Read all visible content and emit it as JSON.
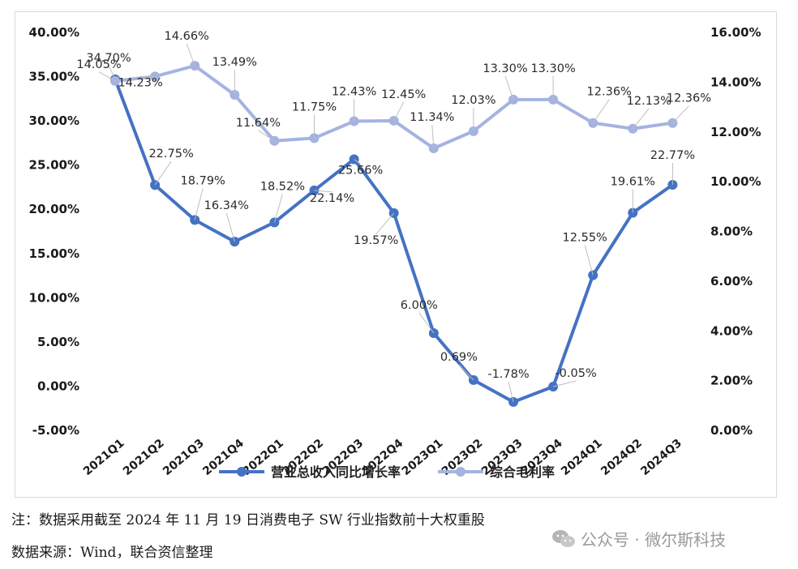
{
  "chart_data": {
    "type": "line",
    "categories": [
      "2021Q1",
      "2021Q2",
      "2021Q3",
      "2021Q4",
      "2022Q1",
      "2022Q2",
      "2022Q3",
      "2022Q4",
      "2023Q1",
      "2023Q2",
      "2023Q3",
      "2023Q4",
      "2024Q1",
      "2024Q2",
      "2024Q3"
    ],
    "series": [
      {
        "name": "营业总收入同比增长率",
        "axis": "left",
        "color": "#4472c4",
        "values": [
          34.7,
          22.75,
          18.79,
          16.34,
          18.52,
          22.14,
          25.66,
          19.57,
          6.0,
          0.69,
          -1.78,
          -0.05,
          12.55,
          19.61,
          22.77
        ],
        "labels": [
          "34.70%",
          "22.75%",
          "18.79%",
          "16.34%",
          "18.52%",
          "22.14%",
          "25.66%",
          "19.57%",
          "6.00%",
          "0.69%",
          "-1.78%",
          "-0.05%",
          "12.55%",
          "19.61%",
          "22.77%"
        ]
      },
      {
        "name": "综合毛利率",
        "axis": "right",
        "color": "#a4b3e0",
        "values": [
          14.05,
          14.23,
          14.66,
          13.49,
          11.64,
          11.75,
          12.43,
          12.45,
          11.34,
          12.03,
          13.3,
          13.3,
          12.36,
          12.13,
          12.36
        ],
        "labels": [
          "14.05%",
          "14.23%",
          "14.66%",
          "13.49%",
          "11.64%",
          "11.75%",
          "12.43%",
          "12.45%",
          "11.34%",
          "12.03%",
          "13.30%",
          "13.30%",
          "12.36%",
          "12.13%",
          "12.36%"
        ]
      }
    ],
    "y_left": {
      "range": [
        -5,
        40
      ],
      "ticks": [
        -5,
        0,
        5,
        10,
        15,
        20,
        25,
        30,
        35,
        40
      ],
      "tick_labels": [
        "-5.00%",
        "0.00%",
        "5.00%",
        "10.00%",
        "15.00%",
        "20.00%",
        "25.00%",
        "30.00%",
        "35.00%",
        "40.00%"
      ]
    },
    "y_right": {
      "range": [
        0,
        16
      ],
      "ticks": [
        0,
        2,
        4,
        6,
        8,
        10,
        12,
        14,
        16
      ],
      "tick_labels": [
        "0.00%",
        "2.00%",
        "4.00%",
        "6.00%",
        "8.00%",
        "10.00%",
        "12.00%",
        "14.00%",
        "16.00%"
      ]
    },
    "grid": false,
    "legend_position": "bottom"
  },
  "note": "注：数据采用截至 2024 年 11 月 19 日消费电子 SW 行业指数前十大权重股",
  "source": "数据来源：Wind，联合资信整理",
  "watermark": "公众号 · 微尔斯科技"
}
